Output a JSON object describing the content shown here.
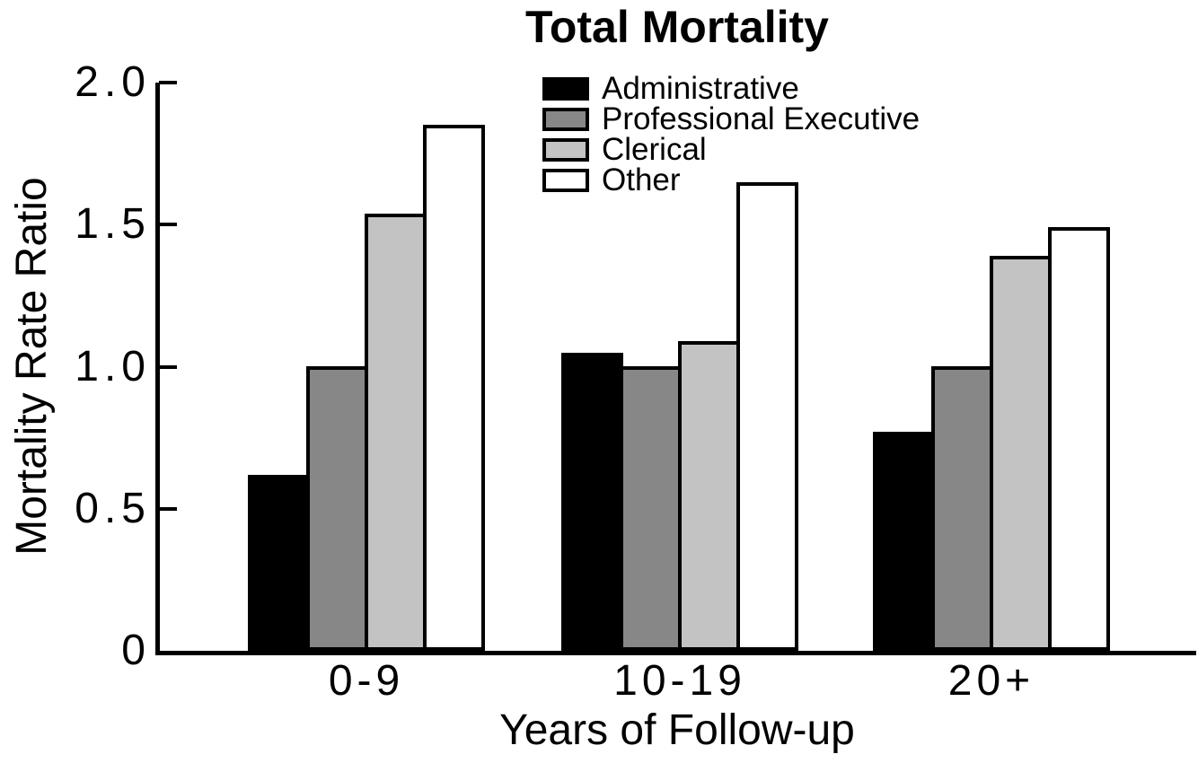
{
  "chart_data": {
    "type": "bar",
    "title": "Total Mortality",
    "xlabel": "Years of Follow-up",
    "ylabel": "Mortality Rate Ratio",
    "categories": [
      "0-9",
      "10-19",
      "20+"
    ],
    "series": [
      {
        "name": "Administrative",
        "color": "#000000",
        "values": [
          0.62,
          1.05,
          0.77
        ]
      },
      {
        "name": "Professional Executive",
        "color": "#878787",
        "values": [
          1.0,
          1.0,
          1.0
        ]
      },
      {
        "name": "Clerical",
        "color": "#c3c3c3",
        "values": [
          1.54,
          1.09,
          1.39
        ]
      },
      {
        "name": "Other",
        "color": "#ffffff",
        "values": [
          1.85,
          1.65,
          1.49
        ]
      }
    ],
    "ylim": [
      0,
      2.0
    ],
    "yticks": [
      {
        "value": 0,
        "label": "0"
      },
      {
        "value": 0.5,
        "label": "0.5"
      },
      {
        "value": 1.0,
        "label": "1.0"
      },
      {
        "value": 1.5,
        "label": "1.5"
      },
      {
        "value": 2.0,
        "label": "2.0"
      }
    ],
    "grid": false,
    "legend_position": "upper-center",
    "bar_border_color": "#000000",
    "axis_color": "#000000"
  }
}
